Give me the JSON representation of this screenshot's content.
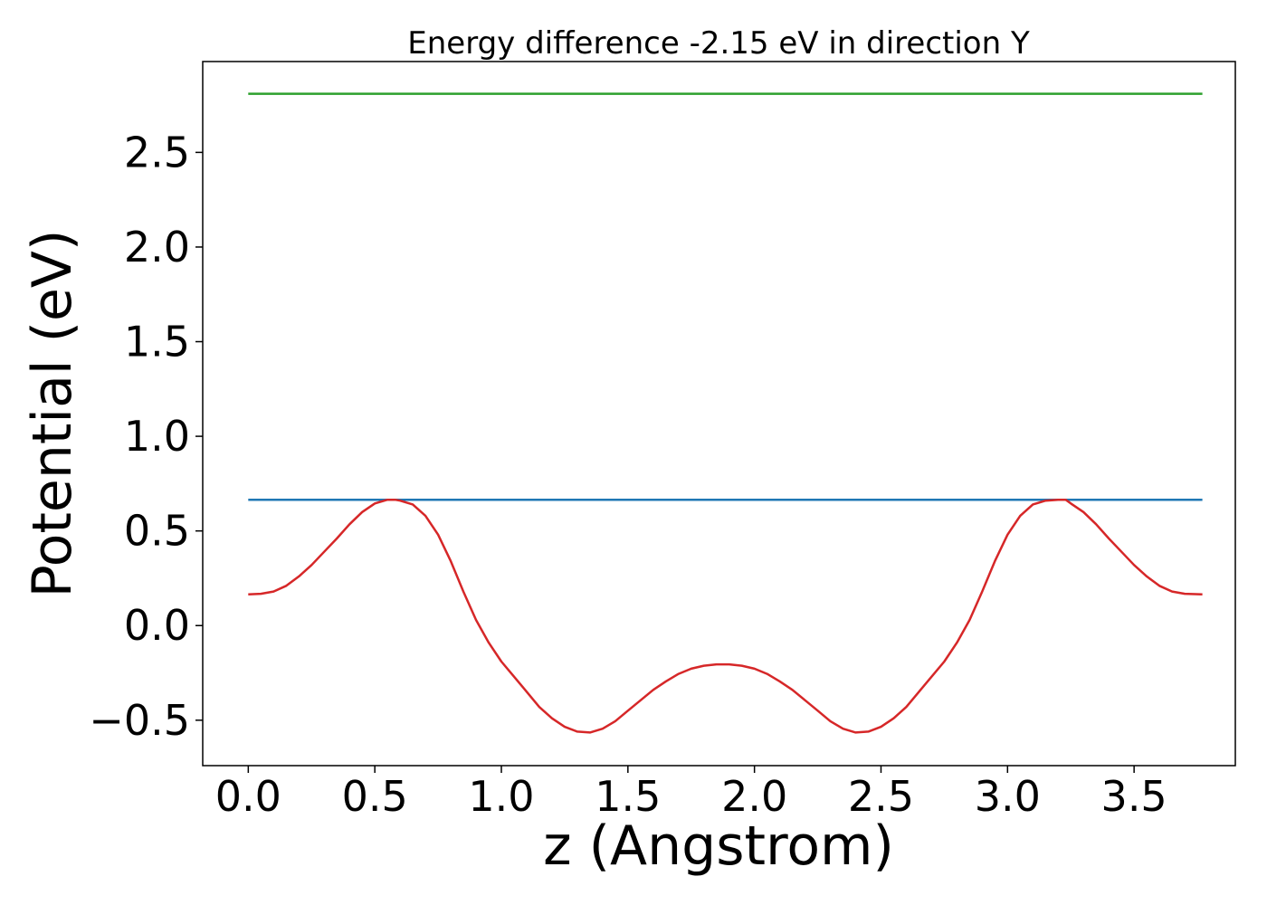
{
  "chart_data": {
    "type": "line",
    "title": "Energy difference -2.15 eV in direction Y",
    "xlabel": "z (Angstrom)",
    "ylabel": "Potential (eV)",
    "xlim": [
      -0.18,
      3.9
    ],
    "ylim": [
      -0.74,
      2.98
    ],
    "xticks": [
      0.0,
      0.5,
      1.0,
      1.5,
      2.0,
      2.5,
      3.0,
      3.5
    ],
    "xtick_labels": [
      "0.0",
      "0.5",
      "1.0",
      "1.5",
      "2.0",
      "2.5",
      "3.0",
      "3.5"
    ],
    "yticks": [
      -0.5,
      0.0,
      0.5,
      1.0,
      1.5,
      2.0,
      2.5
    ],
    "ytick_labels": [
      "−0.5",
      "0.0",
      "0.5",
      "1.0",
      "1.5",
      "2.0",
      "2.5"
    ],
    "grid": false,
    "legend": "none",
    "series": [
      {
        "color": "#2ca02c",
        "x": [
          0.0,
          3.77
        ],
        "y": [
          2.81,
          2.81
        ]
      },
      {
        "color": "#1f77b4",
        "x": [
          0.0,
          3.77
        ],
        "y": [
          0.665,
          0.665
        ]
      },
      {
        "color": "#d62728",
        "x": [
          0.0,
          0.05,
          0.1,
          0.15,
          0.2,
          0.25,
          0.3,
          0.35,
          0.4,
          0.45,
          0.5,
          0.55,
          0.58,
          0.6,
          0.65,
          0.7,
          0.75,
          0.8,
          0.85,
          0.9,
          0.95,
          1.0,
          1.05,
          1.1,
          1.15,
          1.2,
          1.25,
          1.3,
          1.35,
          1.4,
          1.45,
          1.5,
          1.55,
          1.6,
          1.65,
          1.7,
          1.75,
          1.8,
          1.85,
          1.9,
          1.95,
          2.0,
          2.05,
          2.1,
          2.15,
          2.2,
          2.25,
          2.3,
          2.35,
          2.4,
          2.45,
          2.5,
          2.55,
          2.6,
          2.65,
          2.7,
          2.75,
          2.8,
          2.85,
          2.9,
          2.95,
          3.0,
          3.05,
          3.1,
          3.15,
          3.2,
          3.23,
          3.25,
          3.3,
          3.35,
          3.4,
          3.45,
          3.5,
          3.55,
          3.6,
          3.65,
          3.7,
          3.77
        ],
        "y": [
          0.165,
          0.168,
          0.18,
          0.21,
          0.26,
          0.32,
          0.39,
          0.46,
          0.535,
          0.6,
          0.645,
          0.665,
          0.665,
          0.66,
          0.64,
          0.58,
          0.48,
          0.34,
          0.18,
          0.03,
          -0.09,
          -0.19,
          -0.27,
          -0.35,
          -0.43,
          -0.49,
          -0.535,
          -0.56,
          -0.565,
          -0.545,
          -0.505,
          -0.45,
          -0.395,
          -0.34,
          -0.295,
          -0.255,
          -0.228,
          -0.212,
          -0.205,
          -0.205,
          -0.212,
          -0.228,
          -0.255,
          -0.295,
          -0.34,
          -0.395,
          -0.45,
          -0.505,
          -0.545,
          -0.565,
          -0.56,
          -0.535,
          -0.49,
          -0.43,
          -0.35,
          -0.27,
          -0.19,
          -0.09,
          0.03,
          0.18,
          0.34,
          0.48,
          0.58,
          0.64,
          0.66,
          0.665,
          0.665,
          0.645,
          0.6,
          0.535,
          0.46,
          0.39,
          0.32,
          0.26,
          0.21,
          0.18,
          0.168,
          0.165
        ]
      }
    ]
  }
}
